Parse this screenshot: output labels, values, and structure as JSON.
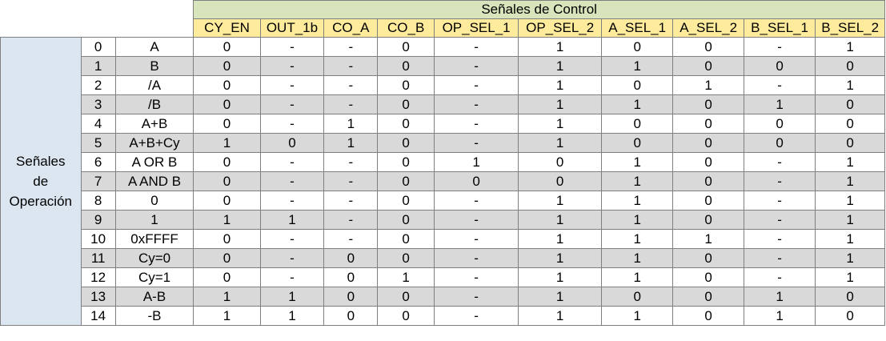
{
  "header": {
    "title": "Señales de Control",
    "columns": [
      "CY_EN",
      "OUT_1b",
      "CO_A",
      "CO_B",
      "OP_SEL_1",
      "OP_SEL_2",
      "A_SEL_1",
      "A_SEL_2",
      "B_SEL_1",
      "B_SEL_2"
    ]
  },
  "row_group": {
    "line1": "Señales",
    "line2": "de",
    "line3": "Operación"
  },
  "rows": [
    {
      "num": "0",
      "op": "A",
      "vals": [
        "0",
        "-",
        "-",
        "0",
        "-",
        "1",
        "0",
        "0",
        "-",
        "1"
      ]
    },
    {
      "num": "1",
      "op": "B",
      "vals": [
        "0",
        "-",
        "-",
        "0",
        "-",
        "1",
        "1",
        "0",
        "0",
        "0"
      ]
    },
    {
      "num": "2",
      "op": "/A",
      "vals": [
        "0",
        "-",
        "-",
        "0",
        "-",
        "1",
        "0",
        "1",
        "-",
        "1"
      ]
    },
    {
      "num": "3",
      "op": "/B",
      "vals": [
        "0",
        "-",
        "-",
        "0",
        "-",
        "1",
        "1",
        "0",
        "1",
        "0"
      ]
    },
    {
      "num": "4",
      "op": "A+B",
      "vals": [
        "0",
        "-",
        "1",
        "0",
        "-",
        "1",
        "0",
        "0",
        "0",
        "0"
      ]
    },
    {
      "num": "5",
      "op": "A+B+Cy",
      "vals": [
        "1",
        "0",
        "1",
        "0",
        "-",
        "1",
        "0",
        "0",
        "0",
        "0"
      ]
    },
    {
      "num": "6",
      "op": "A OR B",
      "vals": [
        "0",
        "-",
        "-",
        "0",
        "1",
        "0",
        "1",
        "0",
        "-",
        "1"
      ]
    },
    {
      "num": "7",
      "op": "A AND B",
      "vals": [
        "0",
        "-",
        "-",
        "0",
        "0",
        "0",
        "1",
        "0",
        "-",
        "1"
      ]
    },
    {
      "num": "8",
      "op": "0",
      "vals": [
        "0",
        "-",
        "-",
        "0",
        "-",
        "1",
        "1",
        "0",
        "-",
        "1"
      ]
    },
    {
      "num": "9",
      "op": "1",
      "vals": [
        "1",
        "1",
        "-",
        "0",
        "-",
        "1",
        "1",
        "0",
        "-",
        "1"
      ]
    },
    {
      "num": "10",
      "op": "0xFFFF",
      "vals": [
        "0",
        "-",
        "-",
        "0",
        "-",
        "1",
        "1",
        "1",
        "-",
        "1"
      ]
    },
    {
      "num": "11",
      "op": "Cy=0",
      "vals": [
        "0",
        "-",
        "0",
        "0",
        "-",
        "1",
        "1",
        "0",
        "-",
        "1"
      ]
    },
    {
      "num": "12",
      "op": "Cy=1",
      "vals": [
        "0",
        "-",
        "0",
        "1",
        "-",
        "1",
        "1",
        "0",
        "-",
        "1"
      ]
    },
    {
      "num": "13",
      "op": "A-B",
      "vals": [
        "1",
        "1",
        "0",
        "0",
        "-",
        "1",
        "0",
        "0",
        "1",
        "0"
      ]
    },
    {
      "num": "14",
      "op": "-B",
      "vals": [
        "1",
        "1",
        "0",
        "0",
        "-",
        "1",
        "1",
        "0",
        "1",
        "0"
      ]
    }
  ]
}
